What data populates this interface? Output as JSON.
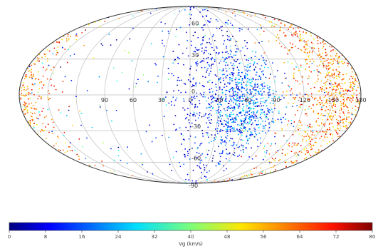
{
  "chart_data": {
    "type": "scatter",
    "projection": "mollweide",
    "grid": true,
    "lon_tick_labels": [
      "90",
      "60",
      "30",
      "0",
      "-30",
      "-60",
      "-90",
      "-120",
      "-150",
      "180",
      "150",
      "120"
    ],
    "lat_tick_labels": [
      "60",
      "30",
      "0",
      "-30",
      "-60",
      "-90"
    ],
    "colorbar": {
      "label": "Vg (km/s)",
      "range": [
        0,
        80
      ],
      "ticks": [
        "0",
        "8",
        "16",
        "24",
        "32",
        "40",
        "48",
        "56",
        "64",
        "72",
        "80"
      ],
      "colormap": "jet",
      "placement": "bottom"
    },
    "clusters": [
      {
        "lon": -110,
        "lat": 0,
        "spread_lon": 25,
        "spread_lat": 35,
        "vg_mean": 60,
        "vg_spread": 7,
        "count": 1100
      },
      {
        "lon": 150,
        "lat": -8,
        "spread_lon": 18,
        "spread_lat": 20,
        "vg_mean": 22,
        "vg_spread": 6,
        "count": 500
      },
      {
        "lon": 125,
        "lat": 0,
        "spread_lon": 30,
        "spread_lat": 35,
        "vg_mean": 9,
        "vg_spread": 5,
        "count": 700
      },
      {
        "lon": 0,
        "lat": 0,
        "spread_lon": 120,
        "spread_lat": 45,
        "vg_mean": 20,
        "vg_spread": 14,
        "count": 220
      }
    ]
  }
}
